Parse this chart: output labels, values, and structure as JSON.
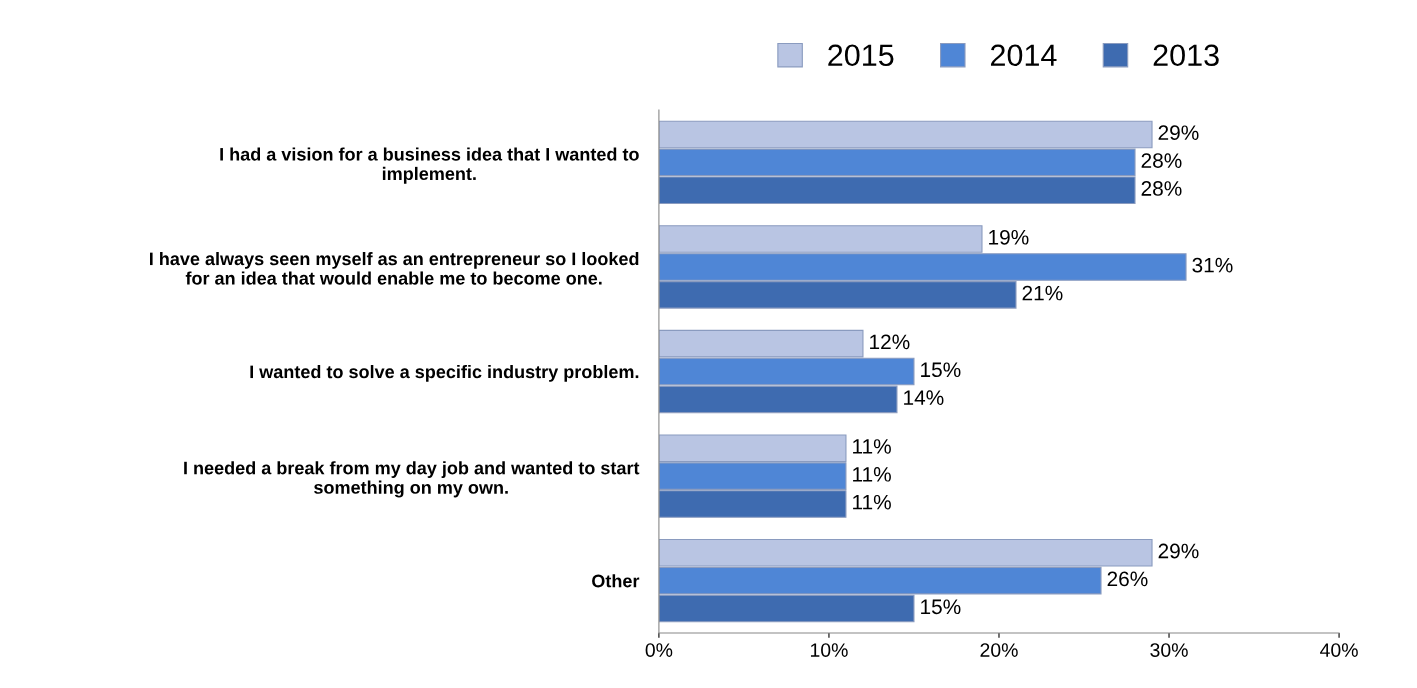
{
  "chart_data": {
    "type": "bar",
    "orientation": "horizontal",
    "categories": [
      "I had a vision for a business idea that I wanted to\nimplement.",
      "I have always seen myself as an entrepreneur so I looked\nfor an idea that would enable me to become one.",
      "I wanted to solve a specific industry problem.",
      "I needed a break from my day job and wanted to start\nsomething on my own.",
      "Other"
    ],
    "series": [
      {
        "name": "2015",
        "color": "#b9c5e3",
        "values": [
          29,
          19,
          12,
          11,
          29
        ],
        "value_labels": [
          "29%",
          "19%",
          "12%",
          "11%",
          "29%"
        ]
      },
      {
        "name": "2014",
        "color": "#4f86d6",
        "values": [
          28,
          31,
          15,
          11,
          26
        ],
        "value_labels": [
          "28%",
          "31%",
          "15%",
          "11%",
          "26%"
        ]
      },
      {
        "name": "2013",
        "color": "#3e6bb0",
        "values": [
          28,
          21,
          14,
          11,
          15
        ],
        "value_labels": [
          "28%",
          "21%",
          "14%",
          "11%",
          "15%"
        ]
      }
    ],
    "xlim": [
      0,
      40
    ],
    "xticks": [
      {
        "value": 0,
        "label": "0%"
      },
      {
        "value": 10,
        "label": "10%"
      },
      {
        "value": 20,
        "label": "20%"
      },
      {
        "value": 30,
        "label": "30%"
      },
      {
        "value": 40,
        "label": "40%"
      }
    ],
    "grid": false,
    "legend": "top"
  }
}
